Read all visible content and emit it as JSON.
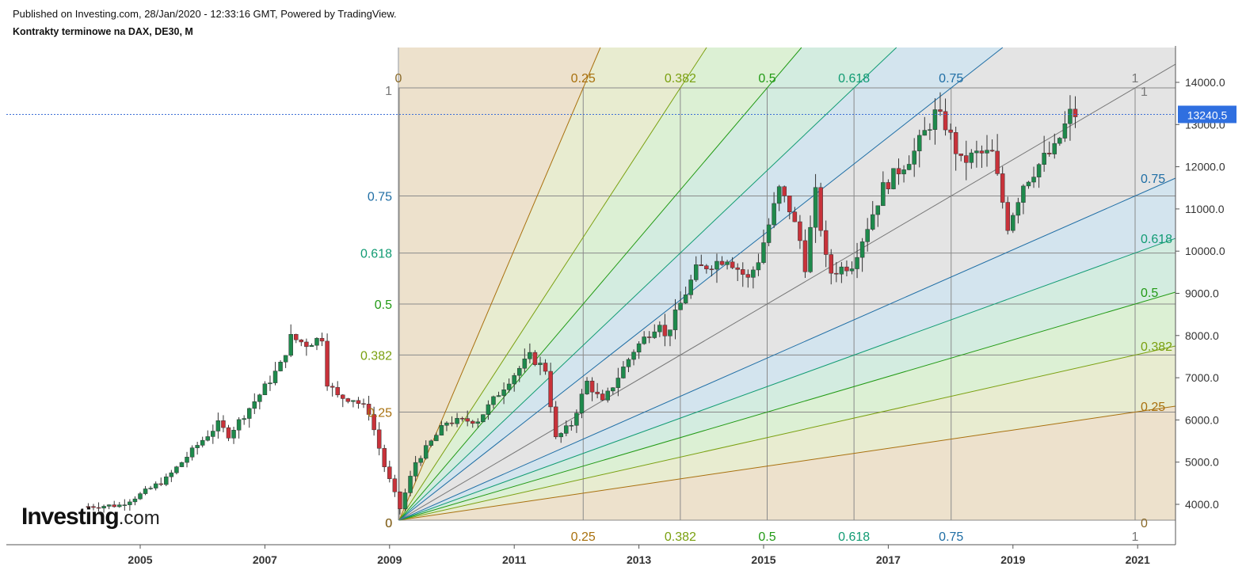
{
  "header": {
    "published": "Published on Investing.com, 28/Jan/2020 - 12:33:16 GMT, Powered by TradingView.",
    "instrument": "Kontrakty terminowe na DAX, DE30, M"
  },
  "logo": {
    "brand": "Investing",
    "suffix": ".com"
  },
  "colors": {
    "up_candle": "#1e8a4c",
    "down_candle": "#c8323a",
    "price_line": "#3d6fd6",
    "price_tag": "#2f6fe0",
    "fan_levels": {
      "0": "#8a6a2a",
      "0.25": "#a8700d",
      "0.382": "#7aa010",
      "0.5": "#229a15",
      "0.618": "#119b73",
      "0.75": "#1f6ea5",
      "1": "#777777"
    },
    "fan_fills": [
      "#ede1cc",
      "#e8ecd0",
      "#dcf0d4",
      "#d3ece0",
      "#d3e4ee",
      "#e4e4e4"
    ]
  },
  "chart_data": {
    "type": "candlestick",
    "period": "monthly",
    "x_ticks": [
      "2005",
      "2007",
      "2009",
      "2011",
      "2013",
      "2015",
      "2017",
      "2019",
      "2021"
    ],
    "y_ticks": [
      "4000.0",
      "5000.0",
      "6000.0",
      "7000.0",
      "8000.0",
      "9000.0",
      "10000.0",
      "11000.0",
      "12000.0",
      "13000.0",
      "14000.0"
    ],
    "y_range": [
      3000,
      14000
    ],
    "last_price": "13240.5",
    "last_price_value": 13240.5,
    "gann_fan": {
      "anchor": {
        "date": "2009-03",
        "price": 3600
      },
      "levels": [
        "0",
        "0.25",
        "0.382",
        "0.5",
        "0.618",
        "0.75",
        "1"
      ],
      "top_labels": [
        "0",
        "0.25",
        "0.382",
        "0.5",
        "0.618",
        "0.75",
        "1"
      ],
      "bottom_labels": [
        "0",
        "0.25",
        "0.382",
        "0.5",
        "0.618",
        "0.75",
        "1"
      ],
      "left_labels": [
        "1",
        "0.75",
        "0.618",
        "0.5",
        "0.382",
        "0.25",
        "0"
      ],
      "right_labels": [
        "1",
        "0.75",
        "0.618",
        "0.5",
        "0.382",
        "0.25",
        "0"
      ]
    },
    "anchor_points": [
      [
        "2004-03",
        3950
      ],
      [
        "2004-09",
        3980
      ],
      [
        "2005-01",
        4230
      ],
      [
        "2005-06",
        4600
      ],
      [
        "2005-12",
        5400
      ],
      [
        "2006-04",
        5900
      ],
      [
        "2006-06",
        5650
      ],
      [
        "2006-12",
        6600
      ],
      [
        "2007-04",
        7300
      ],
      [
        "2007-06",
        7950
      ],
      [
        "2007-09",
        7800
      ],
      [
        "2007-12",
        7960
      ],
      [
        "2008-01",
        6900
      ],
      [
        "2008-03",
        6550
      ],
      [
        "2008-06",
        6500
      ],
      [
        "2008-09",
        6200
      ],
      [
        "2008-12",
        4900
      ],
      [
        "2009-03",
        3900
      ],
      [
        "2009-06",
        5000
      ],
      [
        "2009-12",
        5950
      ],
      [
        "2010-06",
        6000
      ],
      [
        "2010-12",
        6950
      ],
      [
        "2011-04",
        7500
      ],
      [
        "2011-07",
        7200
      ],
      [
        "2011-09",
        5550
      ],
      [
        "2011-12",
        5900
      ],
      [
        "2012-03",
        6900
      ],
      [
        "2012-06",
        6400
      ],
      [
        "2012-12",
        7650
      ],
      [
        "2013-05",
        8350
      ],
      [
        "2013-06",
        7950
      ],
      [
        "2013-12",
        9550
      ],
      [
        "2014-06",
        9850
      ],
      [
        "2014-10",
        9330
      ],
      [
        "2014-12",
        9800
      ],
      [
        "2015-04",
        11450
      ],
      [
        "2015-06",
        11000
      ],
      [
        "2015-08",
        10250
      ],
      [
        "2015-09",
        9650
      ],
      [
        "2015-11",
        11350
      ],
      [
        "2016-01",
        9800
      ],
      [
        "2016-02",
        9500
      ],
      [
        "2016-06",
        9700
      ],
      [
        "2016-12",
        11500
      ],
      [
        "2017-06",
        12350
      ],
      [
        "2017-10",
        13250
      ],
      [
        "2017-12",
        13000
      ],
      [
        "2018-03",
        12100
      ],
      [
        "2018-06",
        12300
      ],
      [
        "2018-09",
        12300
      ],
      [
        "2018-12",
        10600
      ],
      [
        "2019-03",
        11600
      ],
      [
        "2019-07",
        12200
      ],
      [
        "2019-09",
        12400
      ],
      [
        "2019-12",
        13250
      ],
      [
        "2020-01",
        13240
      ]
    ]
  }
}
